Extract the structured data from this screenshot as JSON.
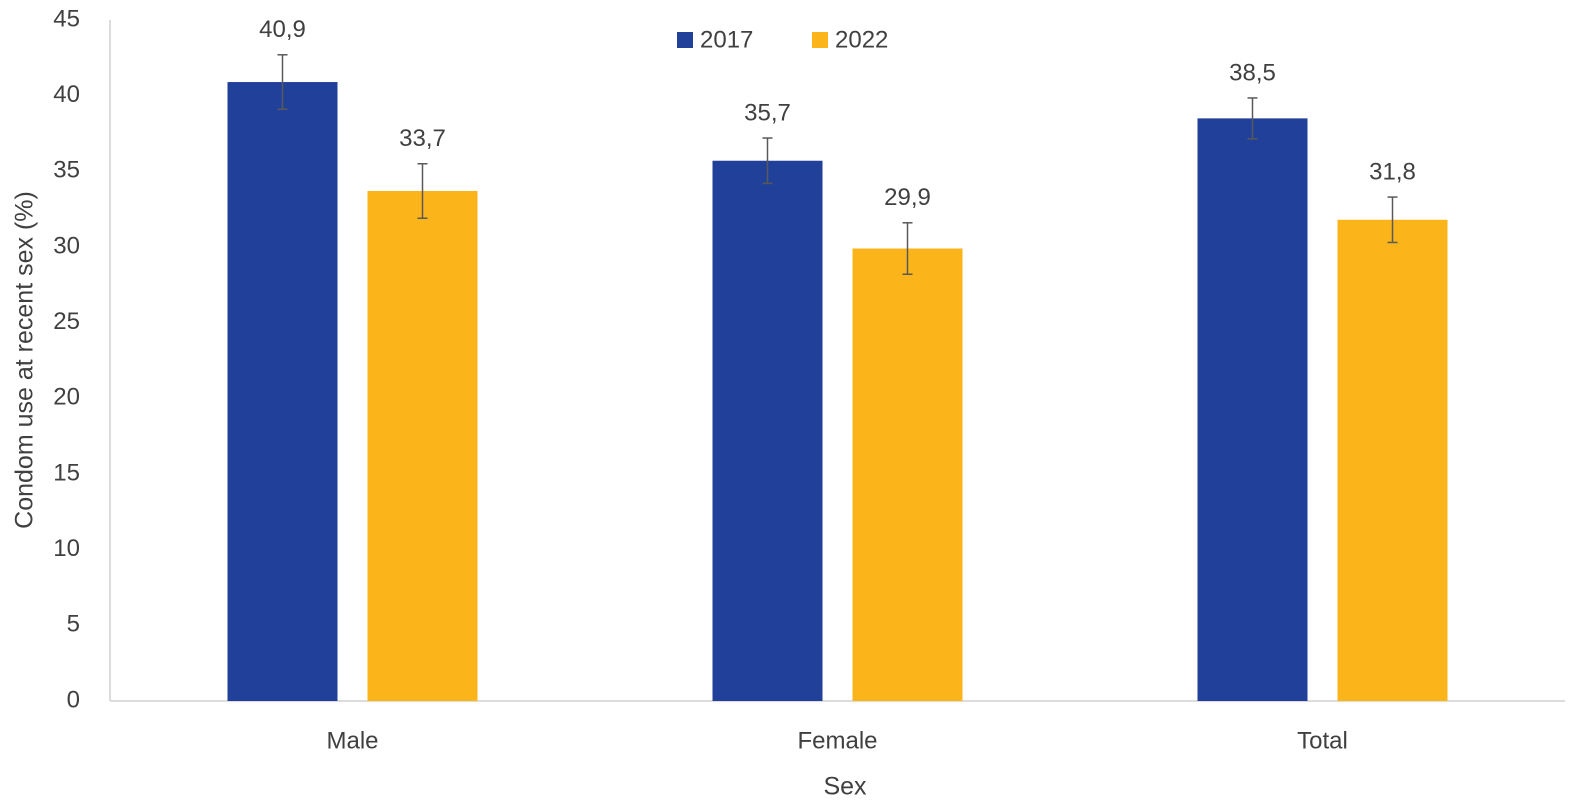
{
  "chart_data": {
    "type": "bar",
    "categories": [
      "Male",
      "Female",
      "Total"
    ],
    "series": [
      {
        "name": "2017",
        "color": "#21409a",
        "values": [
          40.9,
          35.7,
          38.5
        ],
        "value_labels": [
          "40,9",
          "35,7",
          "38,5"
        ],
        "errors": [
          1.8,
          1.5,
          1.35
        ]
      },
      {
        "name": "2022",
        "color": "#fbb41a",
        "values": [
          33.7,
          29.9,
          31.8
        ],
        "value_labels": [
          "33,7",
          "29,9",
          "31,8"
        ],
        "errors": [
          1.8,
          1.7,
          1.5
        ]
      }
    ],
    "xlabel": "Sex",
    "ylabel": "Condom use at recent sex (%)",
    "ylim": [
      0,
      45
    ],
    "yticks": [
      0,
      5,
      10,
      15,
      20,
      25,
      30,
      35,
      40,
      45
    ],
    "grid": false,
    "legend": "top"
  }
}
